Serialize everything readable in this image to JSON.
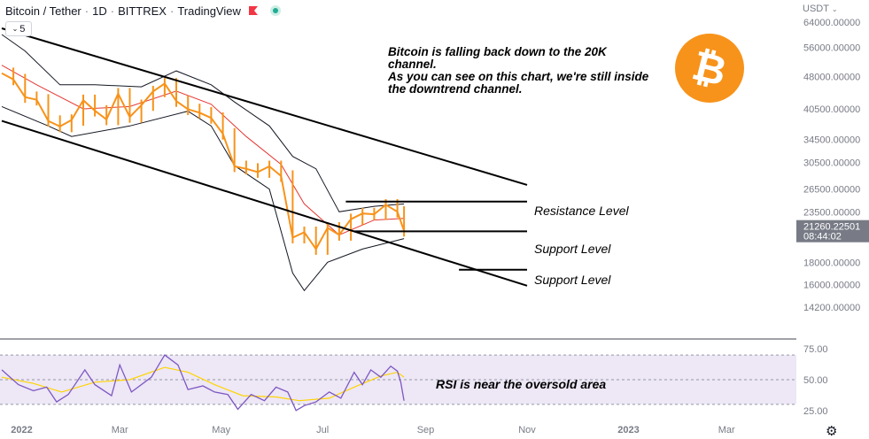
{
  "header": {
    "symbol": "Bitcoin / Tether",
    "interval": "1D",
    "exchange": "BITTREX",
    "source": "TradingView",
    "collapse_count": "5",
    "flag_color": "#f23645"
  },
  "price_scale": {
    "currency": "USDT",
    "last_price": "21260.22501",
    "countdown": "08:44:02",
    "last_price_bg": "#787b86"
  },
  "annotations": {
    "note_lines": [
      "Bitcoin is falling back down to the 20K",
      "channel.",
      "As you can see on this chart, we're still inside",
      "the downtrend channel."
    ],
    "resistance": "Resistance Level",
    "support_1": "Support Level",
    "support_2": "Support Level",
    "rsi_note": "RSI is near the oversold area"
  },
  "logo": {
    "glyph": "₿",
    "color": "#f7931a"
  },
  "colors": {
    "candles": "#f7931a",
    "basis": "#e53935",
    "bands": "#131722",
    "rsi": "#7e57c2",
    "rsi_ma": "#ffd400",
    "rsi_band": "#ede7f6",
    "trendlines": "#000000"
  },
  "chart_data": [
    {
      "type": "candlestick",
      "title": "Bitcoin / Tether · 1D · BITTREX",
      "scale": "log",
      "ylim": [
        12000,
        72000
      ],
      "y_ticks": [
        64000,
        56000,
        48000,
        40500,
        34500,
        30500,
        26500,
        23500,
        18000,
        16000,
        14200
      ],
      "y_tick_labels": [
        "64000.00000",
        "56000.00000",
        "48000.00000",
        "40500.00000",
        "34500.00000",
        "30500.00000",
        "26500.00000",
        "23500.00000",
        "18000.00000",
        "16000.00000",
        "14200.00000"
      ],
      "x_tick_labels": [
        "2022",
        "Mar",
        "May",
        "Jul",
        "Sep",
        "Nov",
        "2023",
        "Mar"
      ],
      "x_tick_dates": [
        "2022-01-01",
        "2022-03-01",
        "2022-05-01",
        "2022-07-01",
        "2022-09-01",
        "2022-11-01",
        "2023-01-01",
        "2023-03-01"
      ],
      "x_range": [
        "2021-12-20",
        "2023-04-12"
      ],
      "last_price": 21260.22501,
      "close_series": [
        [
          "2021-12-20",
          48900
        ],
        [
          "2021-12-27",
          47300
        ],
        [
          "2022-01-03",
          43100
        ],
        [
          "2022-01-10",
          42500
        ],
        [
          "2022-01-17",
          38000
        ],
        [
          "2022-01-24",
          36900
        ],
        [
          "2022-01-31",
          38200
        ],
        [
          "2022-02-07",
          42400
        ],
        [
          "2022-02-14",
          40100
        ],
        [
          "2022-02-21",
          38300
        ],
        [
          "2022-02-28",
          43900
        ],
        [
          "2022-03-07",
          38800
        ],
        [
          "2022-03-14",
          41300
        ],
        [
          "2022-03-21",
          44400
        ],
        [
          "2022-03-28",
          46300
        ],
        [
          "2022-04-04",
          42200
        ],
        [
          "2022-04-11",
          40400
        ],
        [
          "2022-04-18",
          39700
        ],
        [
          "2022-04-25",
          38600
        ],
        [
          "2022-05-02",
          35500
        ],
        [
          "2022-05-09",
          29900
        ],
        [
          "2022-05-16",
          29500
        ],
        [
          "2022-05-23",
          29000
        ],
        [
          "2022-05-30",
          29900
        ],
        [
          "2022-06-06",
          28400
        ],
        [
          "2022-06-13",
          20500
        ],
        [
          "2022-06-20",
          21100
        ],
        [
          "2022-06-27",
          19300
        ],
        [
          "2022-07-04",
          21600
        ],
        [
          "2022-07-11",
          20800
        ],
        [
          "2022-07-18",
          22600
        ],
        [
          "2022-07-25",
          23300
        ],
        [
          "2022-08-01",
          23200
        ],
        [
          "2022-08-08",
          24400
        ],
        [
          "2022-08-15",
          23500
        ],
        [
          "2022-08-19",
          21260
        ]
      ],
      "bollinger_bands": {
        "period": 20,
        "upper": [
          [
            "2021-12-20",
            60000
          ],
          [
            "2022-01-03",
            55000
          ],
          [
            "2022-01-24",
            46000
          ],
          [
            "2022-02-14",
            46000
          ],
          [
            "2022-03-14",
            45500
          ],
          [
            "2022-04-04",
            49500
          ],
          [
            "2022-04-25",
            46000
          ],
          [
            "2022-05-09",
            42000
          ],
          [
            "2022-05-30",
            37000
          ],
          [
            "2022-06-13",
            31500
          ],
          [
            "2022-06-27",
            29500
          ],
          [
            "2022-07-11",
            23500
          ],
          [
            "2022-08-01",
            24200
          ],
          [
            "2022-08-19",
            24500
          ]
        ],
        "lower": [
          [
            "2021-12-20",
            41000
          ],
          [
            "2022-01-17",
            37000
          ],
          [
            "2022-01-31",
            35000
          ],
          [
            "2022-03-07",
            37000
          ],
          [
            "2022-04-11",
            40000
          ],
          [
            "2022-04-25",
            37000
          ],
          [
            "2022-05-09",
            30000
          ],
          [
            "2022-05-30",
            26500
          ],
          [
            "2022-06-13",
            17000
          ],
          [
            "2022-06-20",
            15500
          ],
          [
            "2022-07-04",
            18000
          ],
          [
            "2022-07-25",
            19300
          ],
          [
            "2022-08-19",
            20400
          ]
        ],
        "basis": [
          [
            "2021-12-20",
            51000
          ],
          [
            "2022-01-10",
            46000
          ],
          [
            "2022-02-07",
            40500
          ],
          [
            "2022-03-07",
            41000
          ],
          [
            "2022-04-04",
            44500
          ],
          [
            "2022-04-25",
            41500
          ],
          [
            "2022-05-16",
            35000
          ],
          [
            "2022-06-06",
            30200
          ],
          [
            "2022-06-20",
            24500
          ],
          [
            "2022-07-11",
            20800
          ],
          [
            "2022-08-01",
            22500
          ],
          [
            "2022-08-19",
            22700
          ]
        ]
      },
      "trendlines": [
        {
          "name": "Channel top",
          "from": [
            "2021-12-20",
            62000
          ],
          "to": [
            "2022-11-01",
            27100
          ]
        },
        {
          "name": "Channel bottom",
          "from": [
            "2021-12-20",
            38000
          ],
          "to": [
            "2022-11-01",
            15900
          ]
        },
        {
          "name": "Resistance Level",
          "price": 24800,
          "from": "2022-07-15",
          "to": "2022-11-01"
        },
        {
          "name": "Support Level",
          "price": 21200,
          "from": "2022-07-20",
          "to": "2022-11-01"
        },
        {
          "name": "Support Level",
          "price": 17300,
          "from": "2022-09-21",
          "to": "2022-11-01"
        }
      ]
    },
    {
      "type": "line",
      "title": "RSI",
      "ylim": [
        22,
        78
      ],
      "y_ticks": [
        75,
        50,
        25
      ],
      "y_tick_labels": [
        "75.00",
        "50.00",
        "25.00"
      ],
      "band": [
        30,
        70
      ],
      "series": [
        {
          "values": [
            [
              "2021-12-20",
              58
            ],
            [
              "2021-12-30",
              46
            ],
            [
              "2022-01-08",
              41
            ],
            [
              "2022-01-16",
              44
            ],
            [
              "2022-01-22",
              32
            ],
            [
              "2022-01-29",
              38
            ],
            [
              "2022-02-08",
              58
            ],
            [
              "2022-02-14",
              46
            ],
            [
              "2022-02-24",
              37
            ],
            [
              "2022-03-01",
              62
            ],
            [
              "2022-03-08",
              40
            ],
            [
              "2022-03-20",
              52
            ],
            [
              "2022-03-28",
              70
            ],
            [
              "2022-04-05",
              62
            ],
            [
              "2022-04-11",
              42
            ],
            [
              "2022-04-20",
              45
            ],
            [
              "2022-04-27",
              40
            ],
            [
              "2022-05-05",
              38
            ],
            [
              "2022-05-11",
              26
            ],
            [
              "2022-05-19",
              38
            ],
            [
              "2022-05-27",
              33
            ],
            [
              "2022-06-03",
              44
            ],
            [
              "2022-06-10",
              40
            ],
            [
              "2022-06-15",
              25
            ],
            [
              "2022-06-20",
              29
            ],
            [
              "2022-06-27",
              32
            ],
            [
              "2022-07-05",
              40
            ],
            [
              "2022-07-12",
              35
            ],
            [
              "2022-07-20",
              56
            ],
            [
              "2022-07-25",
              46
            ],
            [
              "2022-07-30",
              58
            ],
            [
              "2022-08-05",
              52
            ],
            [
              "2022-08-11",
              61
            ],
            [
              "2022-08-15",
              57
            ],
            [
              "2022-08-17",
              48
            ],
            [
              "2022-08-19",
              33
            ]
          ]
        },
        {
          "values": [
            [
              "2021-12-20",
              52
            ],
            [
              "2022-01-08",
              47
            ],
            [
              "2022-01-25",
              40
            ],
            [
              "2022-02-14",
              48
            ],
            [
              "2022-03-07",
              50
            ],
            [
              "2022-03-28",
              60
            ],
            [
              "2022-04-11",
              56
            ],
            [
              "2022-04-27",
              46
            ],
            [
              "2022-05-14",
              37
            ],
            [
              "2022-06-03",
              36
            ],
            [
              "2022-06-17",
              33
            ],
            [
              "2022-07-05",
              35
            ],
            [
              "2022-07-20",
              44
            ],
            [
              "2022-08-05",
              53
            ],
            [
              "2022-08-15",
              56
            ],
            [
              "2022-08-19",
              52
            ]
          ]
        }
      ]
    }
  ]
}
